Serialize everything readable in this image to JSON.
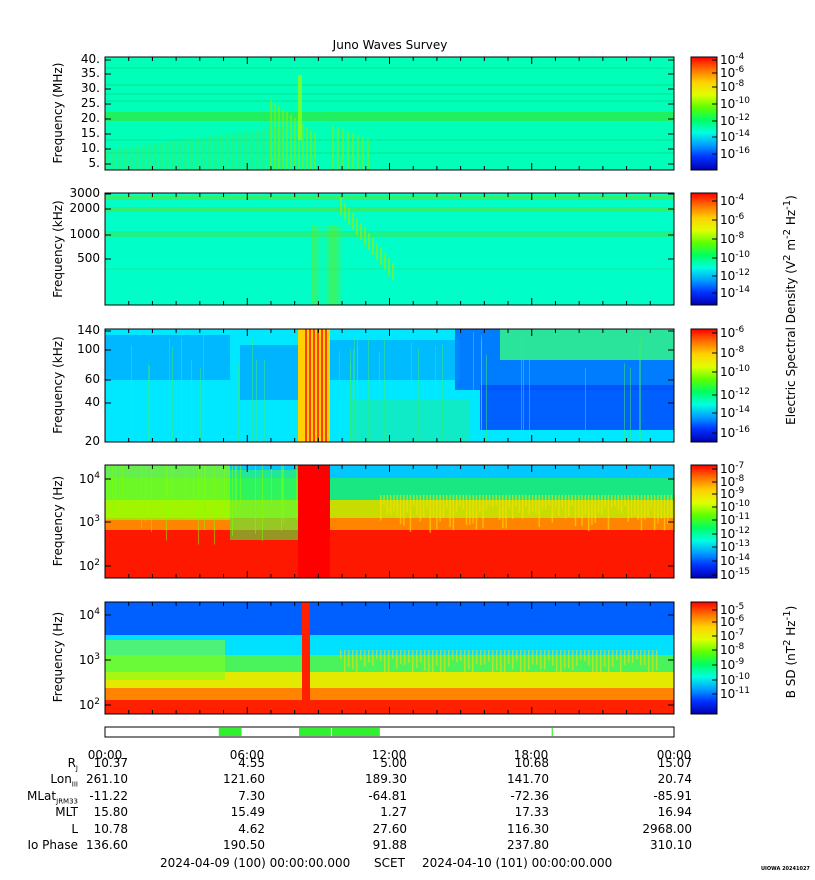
{
  "title": "Juno Waves Survey",
  "chart_data": [
    {
      "type": "heatmap",
      "ylabel": "Frequency (MHz)",
      "yticks": [
        "40.",
        "35.",
        "30.",
        "25.",
        "20.",
        "15.",
        "10.",
        "5."
      ],
      "colorbar_ticks": [
        "-4",
        "-6",
        "-8",
        "-10",
        "-12",
        "-14",
        "-16"
      ],
      "colorbar_range": [
        -17,
        -4
      ]
    },
    {
      "type": "heatmap",
      "ylabel": "Frequency (kHz)",
      "yticks": [
        "3000",
        "2000",
        "1000",
        "500"
      ],
      "colorbar_ticks": [
        "-4",
        "-6",
        "-8",
        "-10",
        "-12",
        "-14"
      ],
      "colorbar_range": [
        -15,
        -3
      ]
    },
    {
      "type": "heatmap",
      "ylabel": "Frequency (kHz)",
      "yticks": [
        "140",
        "100",
        "60",
        "40",
        "20"
      ],
      "colorbar_ticks": [
        "-6",
        "-8",
        "-10",
        "-12",
        "-14",
        "-16"
      ],
      "colorbar_range": [
        -16,
        -6
      ]
    },
    {
      "type": "heatmap",
      "ylabel": "Frequency (Hz)",
      "yticks": [
        "10",
        "10",
        "10"
      ],
      "ytick_exps": [
        "4",
        "3",
        "2"
      ],
      "colorbar_ticks": [
        "-7",
        "-8",
        "-9",
        "-10",
        "-11",
        "-12",
        "-13",
        "-14",
        "-15"
      ],
      "colorbar_range": [
        -15,
        -7
      ]
    },
    {
      "type": "heatmap",
      "ylabel": "Frequency (Hz)",
      "yticks": [
        "10",
        "10",
        "10"
      ],
      "ytick_exps": [
        "4",
        "3",
        "2"
      ],
      "colorbar_ticks": [
        "-5",
        "-6",
        "-7",
        "-8",
        "-9",
        "-10",
        "-11"
      ],
      "colorbar_range": [
        -11,
        -4.5
      ]
    }
  ],
  "colorbar_labels": {
    "electric": [
      "Electric Spectral Density (V",
      "2",
      " m",
      "-2",
      " Hz",
      "-1",
      ")"
    ],
    "magnetic": [
      "B SD (nT",
      "2",
      " Hz",
      "-1",
      ")"
    ]
  },
  "colorbar_base": "10",
  "colors": {
    "scale": [
      "#0000b0",
      "#0030ff",
      "#00a0ff",
      "#00ffe0",
      "#00ff60",
      "#60ff00",
      "#e0ff00",
      "#ffd000",
      "#ff7000",
      "#ff0000"
    ],
    "mode_bar_on": "#30f030",
    "mode_bar_off": "#ffffff"
  },
  "mode_bar": {
    "segments": [
      [
        0.2,
        0.24
      ],
      [
        0.341,
        0.397
      ],
      [
        0.399,
        0.483
      ],
      [
        0.785,
        0.787
      ]
    ]
  },
  "time_axis": {
    "labels": [
      "00:00",
      "06:00",
      "12:00",
      "18:00",
      "00:00"
    ]
  },
  "ephemeris": [
    {
      "label": "R",
      "sub": "J",
      "values": [
        "10.37",
        "4.55",
        "5.00",
        "10.68",
        "15.07"
      ]
    },
    {
      "label": "Lon",
      "sub": "III",
      "values": [
        "261.10",
        "121.60",
        "189.30",
        "141.70",
        "20.74"
      ]
    },
    {
      "label": "MLat",
      "sub": "JRM33",
      "values": [
        "-11.22",
        "7.30",
        "-64.81",
        "-72.36",
        "-85.91"
      ]
    },
    {
      "label": "MLT",
      "sub": "",
      "values": [
        "15.80",
        "15.49",
        "1.27",
        "17.33",
        "16.94"
      ]
    },
    {
      "label": "L",
      "sub": "",
      "values": [
        "10.78",
        "4.62",
        "27.60",
        "116.30",
        "2968.00"
      ]
    },
    {
      "label": "Io Phase",
      "sub": "",
      "values": [
        "136.60",
        "190.50",
        "91.88",
        "237.80",
        "310.10"
      ]
    }
  ],
  "footer": {
    "start": "2024-04-09 (100) 00:00:00.000",
    "scet": "SCET",
    "end": "2024-04-10 (101) 00:00:00.000"
  },
  "stamp": "UIOWA 20241027"
}
